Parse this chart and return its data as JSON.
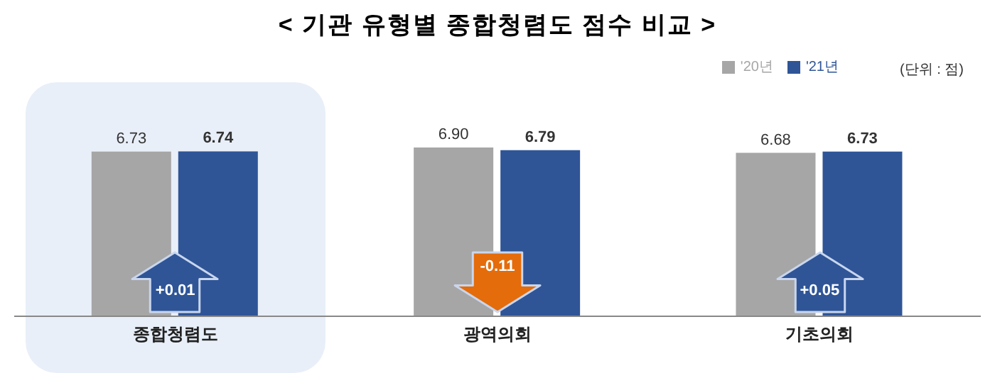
{
  "chart_data": {
    "type": "bar",
    "title": "< 기관 유형별 종합청렴도 점수 비교 >",
    "categories": [
      "종합청렴도",
      "광역의회",
      "기초의회"
    ],
    "series": [
      {
        "name": "'20년",
        "color": "#a6a6a6",
        "values": [
          6.73,
          6.9,
          6.68
        ],
        "value_labels": [
          "6.73",
          "6.90",
          "6.68"
        ]
      },
      {
        "name": "'21년",
        "color": "#2f5597",
        "values": [
          6.74,
          6.79,
          6.73
        ],
        "value_labels": [
          "6.74",
          "6.79",
          "6.73"
        ]
      }
    ],
    "bands": [
      {
        "axis": "x",
        "from": "종합청렴도",
        "to": "종합청렴도",
        "color": "#e9eff8"
      }
    ],
    "legend": "top right",
    "tick_labels": "x",
    "annotations": [
      {
        "text": "+0.01",
        "x": "종합청렴도"
      },
      {
        "text": "-0.11",
        "x": "광역의회"
      },
      {
        "text": "+0.05",
        "x": "기초의회"
      },
      "(단위 : 점)"
    ]
  }
}
